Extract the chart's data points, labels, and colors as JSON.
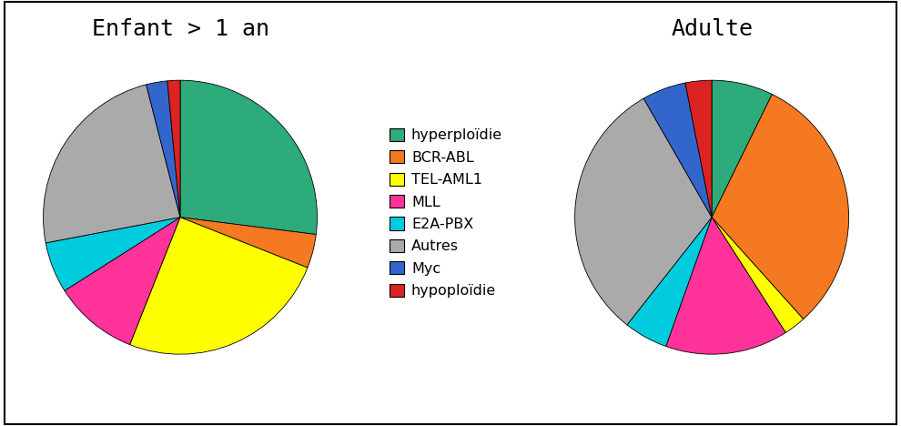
{
  "title1": "Enfant > 1 an",
  "title2": "Adulte",
  "labels": [
    "hyperploïdie",
    "BCR-ABL",
    "TEL-AML1",
    "MLL",
    "E2A-PBX",
    "Autres",
    "Myc",
    "hypoploïdie"
  ],
  "colors": [
    "#2eab7a",
    "#f47921",
    "#ffff00",
    "#ff3399",
    "#00ccdd",
    "#aaaaaa",
    "#3366cc",
    "#dd2222"
  ],
  "enfant_values": [
    27,
    4,
    25,
    10,
    6,
    24,
    2.5,
    1.5
  ],
  "adulte_values": [
    7,
    30,
    2.5,
    14,
    5,
    30,
    5,
    3
  ],
  "background_color": "#ffffff",
  "title_fontsize": 18,
  "legend_fontsize": 11.5
}
